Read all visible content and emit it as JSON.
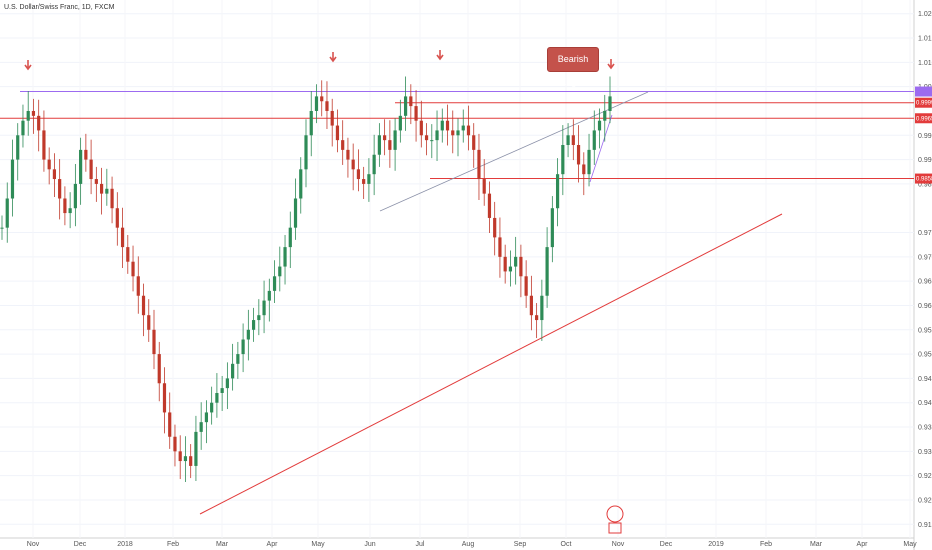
{
  "chart_data": {
    "type": "candlestick",
    "title": "U.S. Dollar/Swiss Franc, 1D, FXCM",
    "x_ticks": [
      "Nov",
      "Dec",
      "2018",
      "Feb",
      "Mar",
      "Apr",
      "May",
      "Jun",
      "Jul",
      "Aug",
      "Sep",
      "Oct",
      "Nov",
      "Dec",
      "2019",
      "Feb",
      "Mar",
      "Apr",
      "May"
    ],
    "y_ticks": [
      "1.02000",
      "1.01500",
      "1.01000",
      "1.00500",
      "0.99500",
      "0.99000",
      "0.98500",
      "0.97500",
      "0.97000",
      "0.96500",
      "0.96000",
      "0.95500",
      "0.95000",
      "0.94500",
      "0.94000",
      "0.93500",
      "0.93000",
      "0.92500",
      "0.92000",
      "0.91500"
    ],
    "y_range": [
      0.913,
      1.022
    ],
    "price_tags": [
      {
        "label": "0.99991",
        "price": 1.0017,
        "color": "#e23b3b"
      },
      {
        "label": "0.99651",
        "price": 0.9985,
        "color": "#e23b3b"
      },
      {
        "label": "0.98583",
        "price": 0.9861,
        "color": "#e23b3b"
      }
    ],
    "horizontal_lines": [
      {
        "price": 1.004,
        "color": "#9c6bf0"
      },
      {
        "price": 1.0017,
        "color": "#e23b3b"
      },
      {
        "price": 0.9985,
        "color": "#e23b3b"
      },
      {
        "price": 0.9861,
        "color": "#e23b3b"
      }
    ],
    "annotations": [
      {
        "type": "callout",
        "text": "Bearish Engulf"
      }
    ],
    "arrows": 4,
    "series": [
      {
        "name": "USDCHF",
        "close": [
          0.976,
          0.982,
          0.99,
          0.995,
          0.998,
          1.0,
          0.999,
          0.996,
          0.99,
          0.988,
          0.986,
          0.982,
          0.979,
          0.98,
          0.985,
          0.992,
          0.99,
          0.986,
          0.985,
          0.983,
          0.984,
          0.98,
          0.976,
          0.972,
          0.969,
          0.966,
          0.962,
          0.958,
          0.955,
          0.95,
          0.944,
          0.938,
          0.933,
          0.93,
          0.928,
          0.929,
          0.927,
          0.934,
          0.936,
          0.938,
          0.94,
          0.942,
          0.943,
          0.945,
          0.948,
          0.95,
          0.953,
          0.955,
          0.957,
          0.958,
          0.961,
          0.963,
          0.966,
          0.968,
          0.972,
          0.976,
          0.982,
          0.988,
          0.995,
          1.0,
          1.003,
          1.002,
          1.0,
          0.997,
          0.994,
          0.992,
          0.99,
          0.988,
          0.986,
          0.985,
          0.987,
          0.991,
          0.995,
          0.994,
          0.992,
          0.996,
          0.999,
          1.003,
          1.001,
          0.998,
          0.995,
          0.994,
          0.994,
          0.996,
          0.998,
          0.996,
          0.995,
          0.996,
          0.997,
          0.995,
          0.992,
          0.986,
          0.983,
          0.978,
          0.974,
          0.97,
          0.967,
          0.968,
          0.97,
          0.966,
          0.962,
          0.958,
          0.957,
          0.962,
          0.972,
          0.98,
          0.987,
          0.993,
          0.995,
          0.993,
          0.989,
          0.987,
          0.992,
          0.996,
          0.998,
          1.0,
          1.003
        ]
      }
    ]
  }
}
